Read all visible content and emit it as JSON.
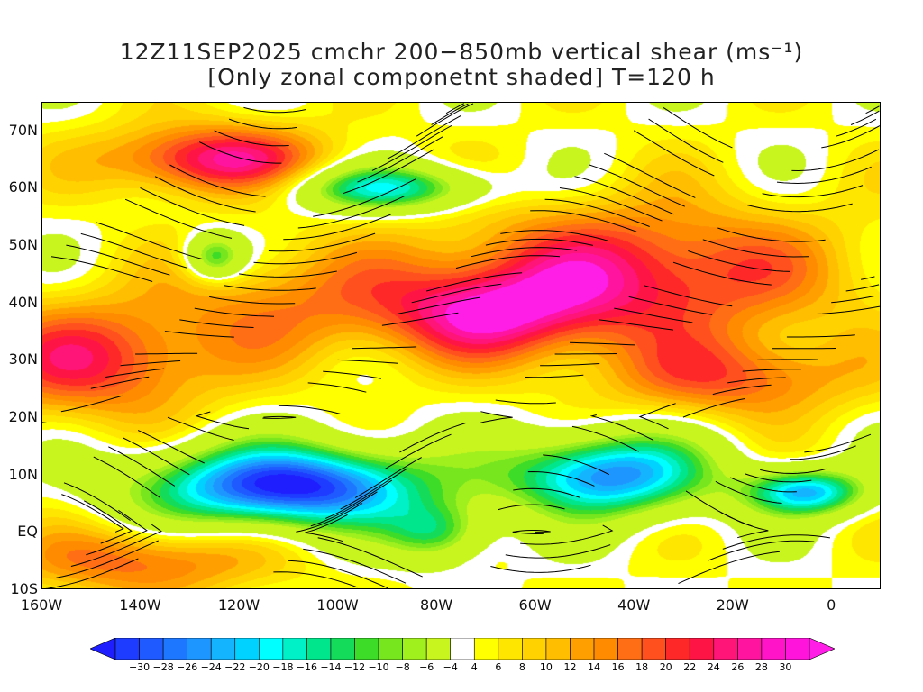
{
  "title": {
    "line1": "12Z11SEP2025 cmchr 200−850mb vertical shear (ms⁻¹)",
    "line2": "[Only zonal componetnt shaded] T=120 h"
  },
  "map": {
    "lon_min": -160,
    "lon_max": 10,
    "lat_min": -10,
    "lat_max": 75,
    "lat_ticks": [
      {
        "value": 70,
        "label": "70N"
      },
      {
        "value": 60,
        "label": "60N"
      },
      {
        "value": 50,
        "label": "50N"
      },
      {
        "value": 40,
        "label": "40N"
      },
      {
        "value": 30,
        "label": "30N"
      },
      {
        "value": 20,
        "label": "20N"
      },
      {
        "value": 10,
        "label": "10N"
      },
      {
        "value": 0,
        "label": "EQ"
      },
      {
        "value": -10,
        "label": "10S"
      }
    ],
    "lon_ticks": [
      {
        "value": -160,
        "label": "160W"
      },
      {
        "value": -140,
        "label": "140W"
      },
      {
        "value": -120,
        "label": "120W"
      },
      {
        "value": -100,
        "label": "100W"
      },
      {
        "value": -80,
        "label": "80W"
      },
      {
        "value": -60,
        "label": "60W"
      },
      {
        "value": -40,
        "label": "40W"
      },
      {
        "value": -20,
        "label": "20W"
      },
      {
        "value": 0,
        "label": "0"
      }
    ]
  },
  "colorbar": {
    "labels": [
      "−30",
      "−28",
      "−26",
      "−24",
      "−22",
      "−20",
      "−18",
      "−16",
      "−14",
      "−12",
      "−10",
      "−8",
      "−6",
      "−4",
      "4",
      "6",
      "8",
      "10",
      "12",
      "14",
      "16",
      "18",
      "20",
      "22",
      "24",
      "26",
      "28",
      "30"
    ],
    "colors": [
      "#1e3cff",
      "#1e5aff",
      "#1e78ff",
      "#1e96ff",
      "#14b4ff",
      "#00d2ff",
      "#00ffff",
      "#00f0c8",
      "#00e68c",
      "#14dc5a",
      "#3cdc28",
      "#78e61e",
      "#a0f01e",
      "#c8f51e",
      "#ffffff",
      "#ffff00",
      "#ffe600",
      "#ffd200",
      "#ffbe00",
      "#ffa000",
      "#ff8c00",
      "#ff6e14",
      "#ff501e",
      "#ff2828",
      "#ff1446",
      "#ff1478",
      "#ff14a0",
      "#ff14c8",
      "#ff14dc"
    ],
    "below_color": "#1e1eff",
    "above_color": "#ff1ee6"
  }
}
